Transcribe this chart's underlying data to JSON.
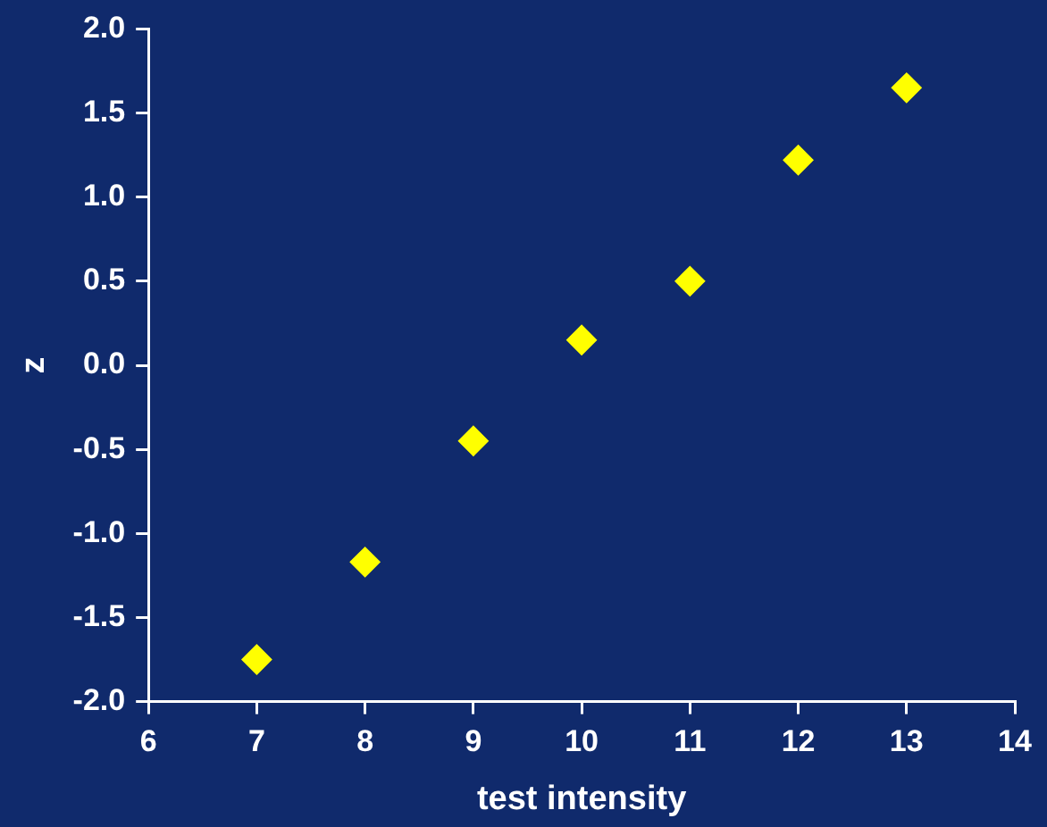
{
  "chart_data": {
    "type": "scatter",
    "xlabel": "test intensity",
    "ylabel": "z",
    "x": [
      7,
      8,
      9,
      10,
      11,
      12,
      13
    ],
    "series": [
      {
        "color": "#ffff00",
        "values": [
          -1.75,
          -1.17,
          -0.45,
          0.15,
          0.5,
          1.22,
          1.65
        ]
      }
    ],
    "xlim": [
      6,
      14
    ],
    "xticks": [
      6,
      7,
      8,
      9,
      10,
      11,
      12,
      13,
      14
    ],
    "ylim": [
      -2,
      2
    ],
    "yticks": [
      {
        "value": -2,
        "label": "-2.0"
      },
      {
        "value": -1.5,
        "label": "-1.5"
      },
      {
        "value": -1,
        "label": "-1.0"
      },
      {
        "value": -0.5,
        "label": "-0.5"
      },
      {
        "value": 0,
        "label": "0.0"
      },
      {
        "value": 0.5,
        "label": "0.5"
      },
      {
        "value": 1,
        "label": "1.0"
      },
      {
        "value": 1.5,
        "label": "1.5"
      },
      {
        "value": 2,
        "label": "2.0"
      }
    ],
    "grid": false,
    "legend": false,
    "marker": "diamond"
  }
}
